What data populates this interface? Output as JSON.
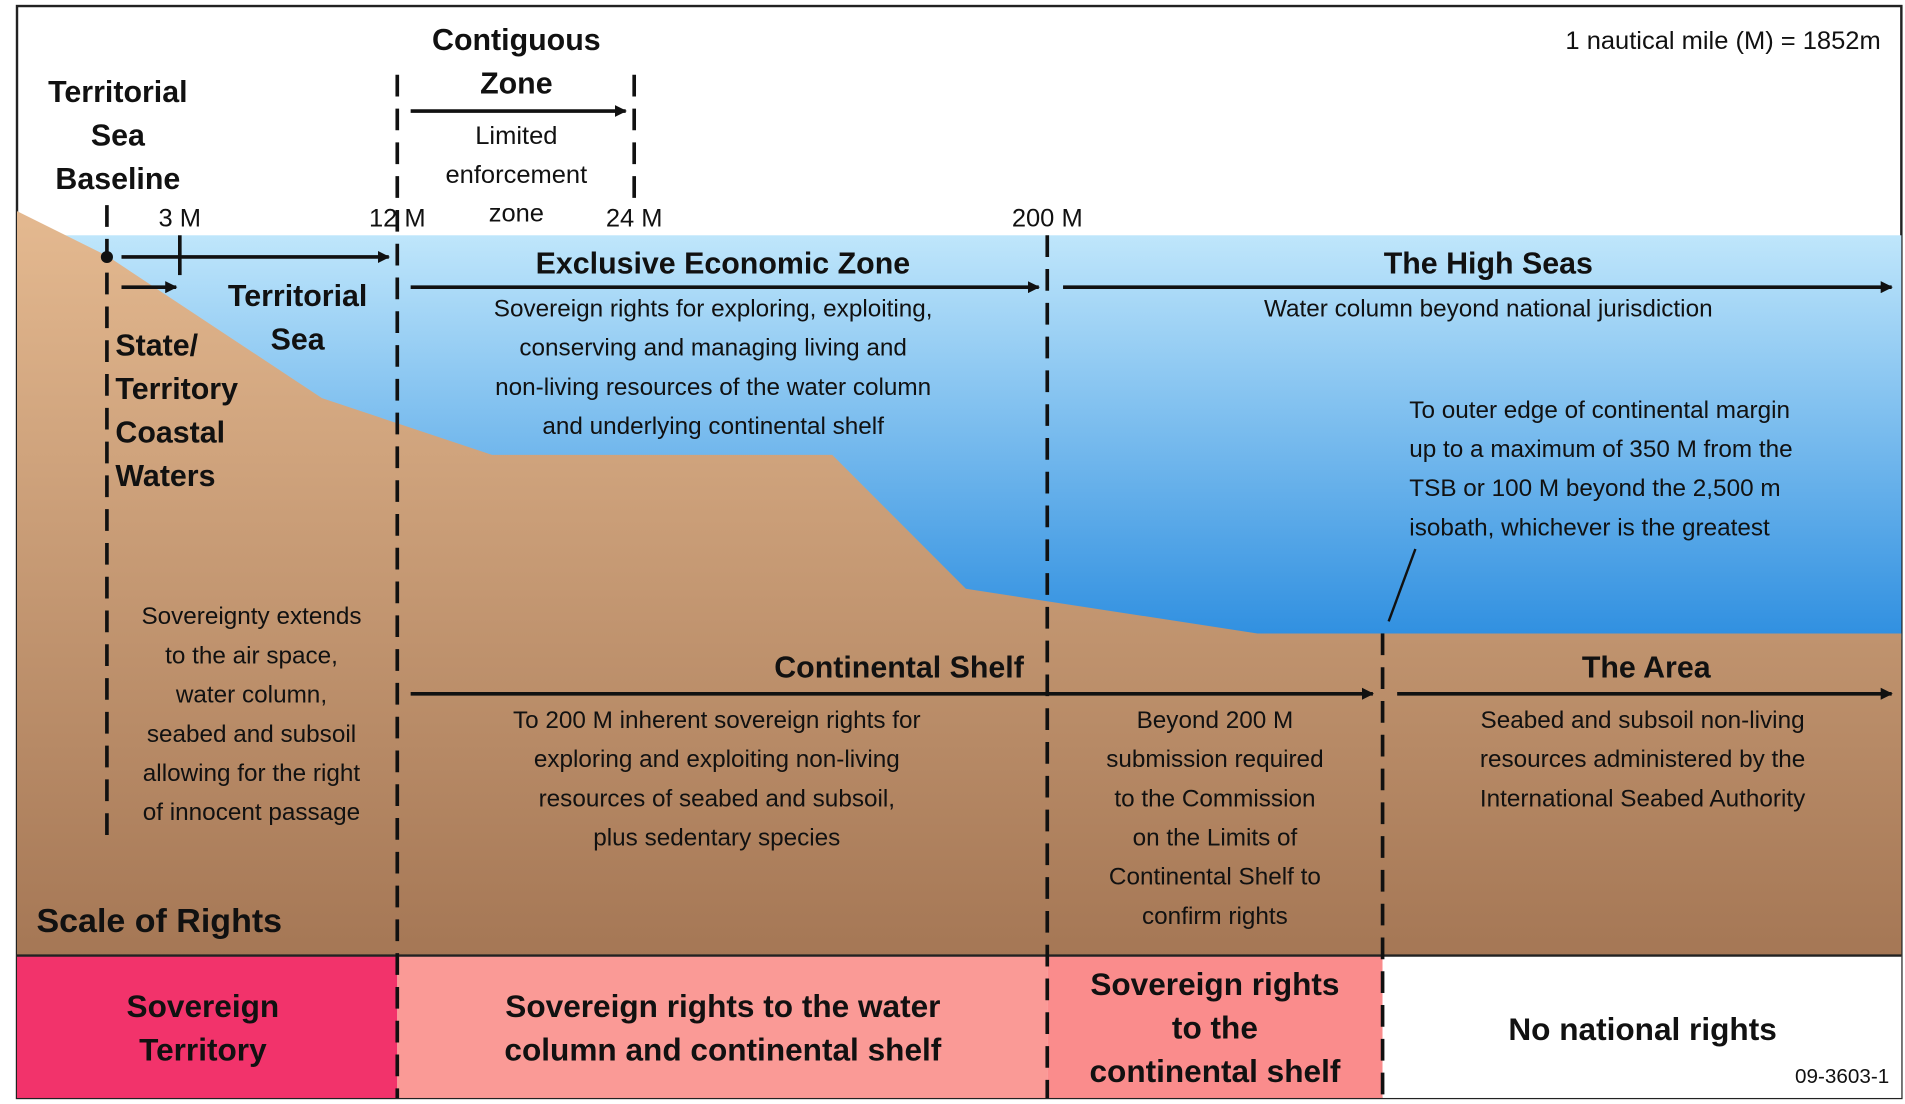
{
  "note": "1 nautical mile (M) = 1852m",
  "figure_id": "09-3603-1",
  "baseline_label": [
    "Territorial",
    "Sea",
    "Baseline"
  ],
  "contiguous_zone": {
    "title": [
      "Contiguous",
      "Zone"
    ],
    "description": [
      "Limited",
      "enforcement",
      "zone"
    ]
  },
  "distance_markers": [
    "3 M",
    "12 M",
    "24 M",
    "200 M"
  ],
  "territorial_sea": [
    "Territorial",
    "Sea"
  ],
  "coastal_waters": [
    "State/",
    "Territory",
    "Coastal",
    "Waters"
  ],
  "sovereignty_note": [
    "Sovereignty extends",
    "to the air space,",
    "water column,",
    "seabed and subsoil",
    "allowing for the right",
    "of innocent passage"
  ],
  "eez": {
    "title": "Exclusive Economic Zone",
    "description": [
      "Sovereign rights for exploring, exploiting,",
      "conserving and managing living and",
      "non-living resources of the water column",
      "and underlying continental shelf"
    ]
  },
  "high_seas": {
    "title": "The High Seas",
    "description": "Water column beyond national jurisdiction"
  },
  "continental_margin_note": [
    "To outer edge of continental margin",
    "up to a maximum of 350 M from the",
    "TSB or 100 M beyond the 2,500 m",
    "isobath, whichever is the greatest"
  ],
  "continental_shelf": {
    "title": "Continental Shelf",
    "description": [
      "To 200 M inherent sovereign rights for",
      "exploring and exploiting non-living",
      "resources of seabed and subsoil,",
      "plus sedentary species"
    ],
    "beyond": [
      "Beyond 200 M",
      "submission required",
      "to the Commission",
      "on the Limits of",
      "Continental Shelf to",
      "confirm rights"
    ]
  },
  "the_area": {
    "title": "The Area",
    "description": [
      "Seabed and subsoil non-living",
      "resources administered by the",
      "International Seabed Authority"
    ]
  },
  "scale_of_rights": "Scale of Rights",
  "rights": [
    [
      "Sovereign",
      "Territory"
    ],
    [
      "Sovereign rights to the water",
      "column and continental shelf"
    ],
    [
      "Sovereign rights",
      "to the",
      "continental shelf"
    ],
    [
      "No national rights"
    ]
  ]
}
